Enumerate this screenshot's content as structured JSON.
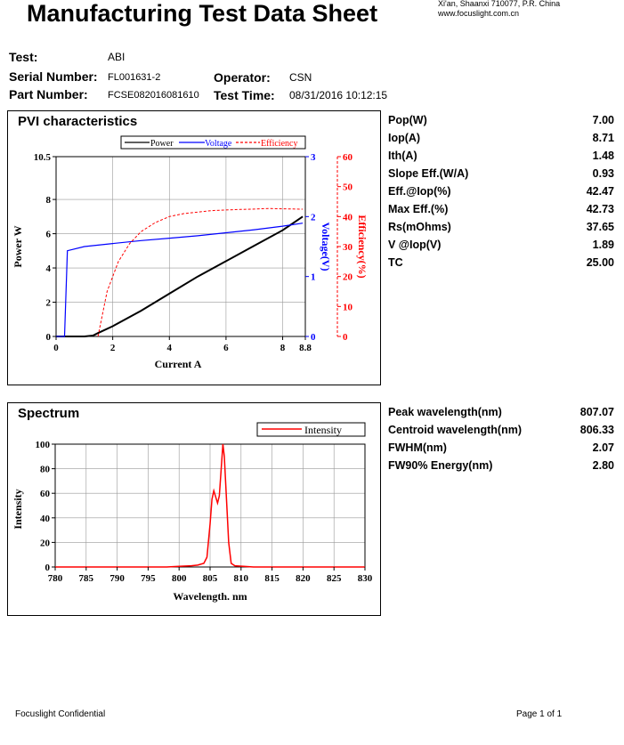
{
  "header": {
    "title": "Manufacturing Test Data Sheet",
    "address": "Xi'an, Shaanxi 710077,  P.R.  China",
    "website": "www.focuslight.com.cn"
  },
  "info": {
    "test_label": "Test:",
    "test_value": "ABI",
    "serial_label": "Serial Number:",
    "serial_value": "FL001631-2",
    "part_label": "Part Number:",
    "part_value": "FCSE082016081610",
    "operator_label": "Operator:",
    "operator_value": "CSN",
    "testtime_label": "Test Time:",
    "testtime_value": "08/31/2016 10:12:15"
  },
  "pvi": {
    "title": "PVI characteristics",
    "metrics": [
      {
        "label": "Pop(W)",
        "value": "7.00"
      },
      {
        "label": "Iop(A)",
        "value": "8.71"
      },
      {
        "label": "Ith(A)",
        "value": "1.48"
      },
      {
        "label": "Slope Eff.(W/A)",
        "value": "0.93"
      },
      {
        "label": "Eff.@Iop(%)",
        "value": "42.47"
      },
      {
        "label": "Max Eff.(%)",
        "value": "42.73"
      },
      {
        "label": "Rs(mOhms)",
        "value": "37.65"
      },
      {
        "label": "V @Iop(V)",
        "value": "1.89"
      },
      {
        "label": "TC",
        "value": "25.00"
      }
    ]
  },
  "spectrum": {
    "title": "Spectrum",
    "metrics": [
      {
        "label": "Peak wavelength(nm)",
        "value": "807.07"
      },
      {
        "label": "Centroid wavelength(nm)",
        "value": "806.33"
      },
      {
        "label": "FWHM(nm)",
        "value": "2.07"
      },
      {
        "label": "FW90% Energy(nm)",
        "value": "2.80"
      }
    ]
  },
  "footer": {
    "left": "Focuslight Confidential",
    "right": "Page 1 of 1"
  },
  "colors": {
    "power": "#000000",
    "voltage": "#0000ff",
    "efficiency": "#ff0000",
    "intensity": "#ff0000"
  },
  "chart_data": [
    {
      "type": "line",
      "xlabel": "Current A",
      "ylabel": "Power W",
      "y2label": "Voltage(V)",
      "y3label": "Efficiency(%)",
      "xlim": [
        0,
        8.8
      ],
      "ylim": [
        0,
        10.5
      ],
      "y2lim": [
        0,
        3
      ],
      "y3lim": [
        0,
        60
      ],
      "x_ticks": [
        "0",
        "2",
        "4",
        "6",
        "8",
        "8.8"
      ],
      "y_ticks": [
        "0",
        "2",
        "4",
        "6",
        "8",
        "10.5"
      ],
      "y2_ticks": [
        "0",
        "1",
        "2",
        "3"
      ],
      "y3_ticks": [
        "0",
        "10",
        "20",
        "30",
        "40",
        "50",
        "60"
      ],
      "legend": "top-right",
      "grid": true,
      "series": [
        {
          "name": "Power",
          "x": [
            0,
            1.0,
            1.3,
            1.48,
            2.0,
            3.0,
            4.0,
            5.0,
            6.0,
            7.0,
            8.0,
            8.71
          ],
          "y": [
            0,
            0,
            0.05,
            0.2,
            0.6,
            1.5,
            2.5,
            3.5,
            4.4,
            5.3,
            6.2,
            7.0
          ]
        },
        {
          "name": "Voltage",
          "x": [
            0,
            0.3,
            0.4,
            1.0,
            2.0,
            3.0,
            4.0,
            5.0,
            6.0,
            7.0,
            8.0,
            8.71
          ],
          "y": [
            0,
            0,
            1.43,
            1.5,
            1.55,
            1.6,
            1.64,
            1.68,
            1.73,
            1.78,
            1.84,
            1.89
          ]
        },
        {
          "name": "Efficiency",
          "x": [
            1.48,
            1.8,
            2.2,
            2.6,
            3.0,
            3.5,
            4.0,
            4.5,
            5.0,
            5.5,
            6.0,
            6.5,
            7.0,
            7.5,
            8.0,
            8.71
          ],
          "y": [
            0,
            15,
            25,
            31,
            35,
            38,
            40,
            41,
            41.5,
            42,
            42.2,
            42.4,
            42.5,
            42.7,
            42.6,
            42.47
          ]
        }
      ]
    },
    {
      "type": "line",
      "xlabel": "Wavelength. nm",
      "ylabel": "Intensity",
      "xlim": [
        780,
        830
      ],
      "ylim": [
        0,
        100
      ],
      "x_ticks": [
        "780",
        "785",
        "790",
        "795",
        "800",
        "805",
        "810",
        "815",
        "820",
        "825",
        "830"
      ],
      "y_ticks": [
        "0",
        "20",
        "40",
        "60",
        "80",
        "100"
      ],
      "legend": "top-right",
      "grid": true,
      "series": [
        {
          "name": "Intensity",
          "x": [
            780,
            798,
            800,
            802,
            803,
            804,
            804.5,
            805,
            805.3,
            805.6,
            805.9,
            806.2,
            806.5,
            806.8,
            807.07,
            807.3,
            807.6,
            808,
            808.4,
            809,
            812,
            830
          ],
          "y": [
            0,
            0,
            0.5,
            1,
            1.5,
            3,
            8,
            35,
            55,
            62,
            57,
            52,
            58,
            80,
            100,
            90,
            60,
            20,
            3,
            1,
            0,
            0
          ]
        }
      ]
    }
  ]
}
